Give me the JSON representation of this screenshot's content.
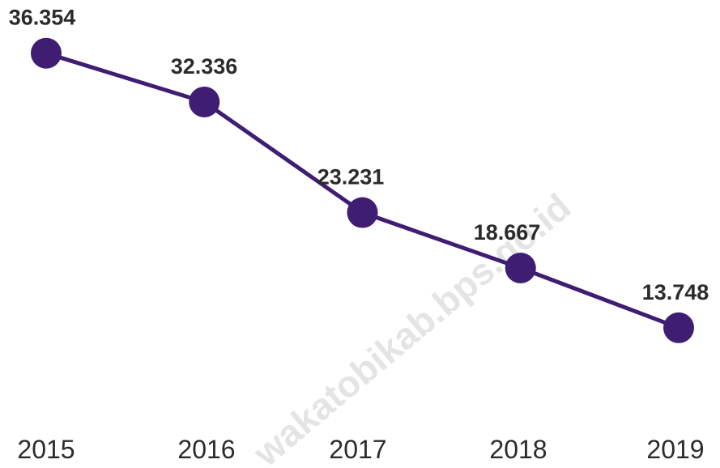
{
  "chart_data": {
    "type": "line",
    "categories": [
      "2015",
      "2016",
      "2017",
      "2018",
      "2019"
    ],
    "values": [
      36.354,
      32.336,
      23.231,
      18.667,
      13.748
    ],
    "value_labels": [
      "36.354",
      "32.336",
      "23.231",
      "18.667",
      "13.748"
    ],
    "title": "",
    "xlabel": "",
    "ylabel": "",
    "ylim": [
      0,
      40
    ],
    "grid": false,
    "legend": "none",
    "line_color": "#3f1d73",
    "marker_color": "#3f1d73"
  },
  "watermark": {
    "text": "wakatobikab.bps.go.id"
  }
}
